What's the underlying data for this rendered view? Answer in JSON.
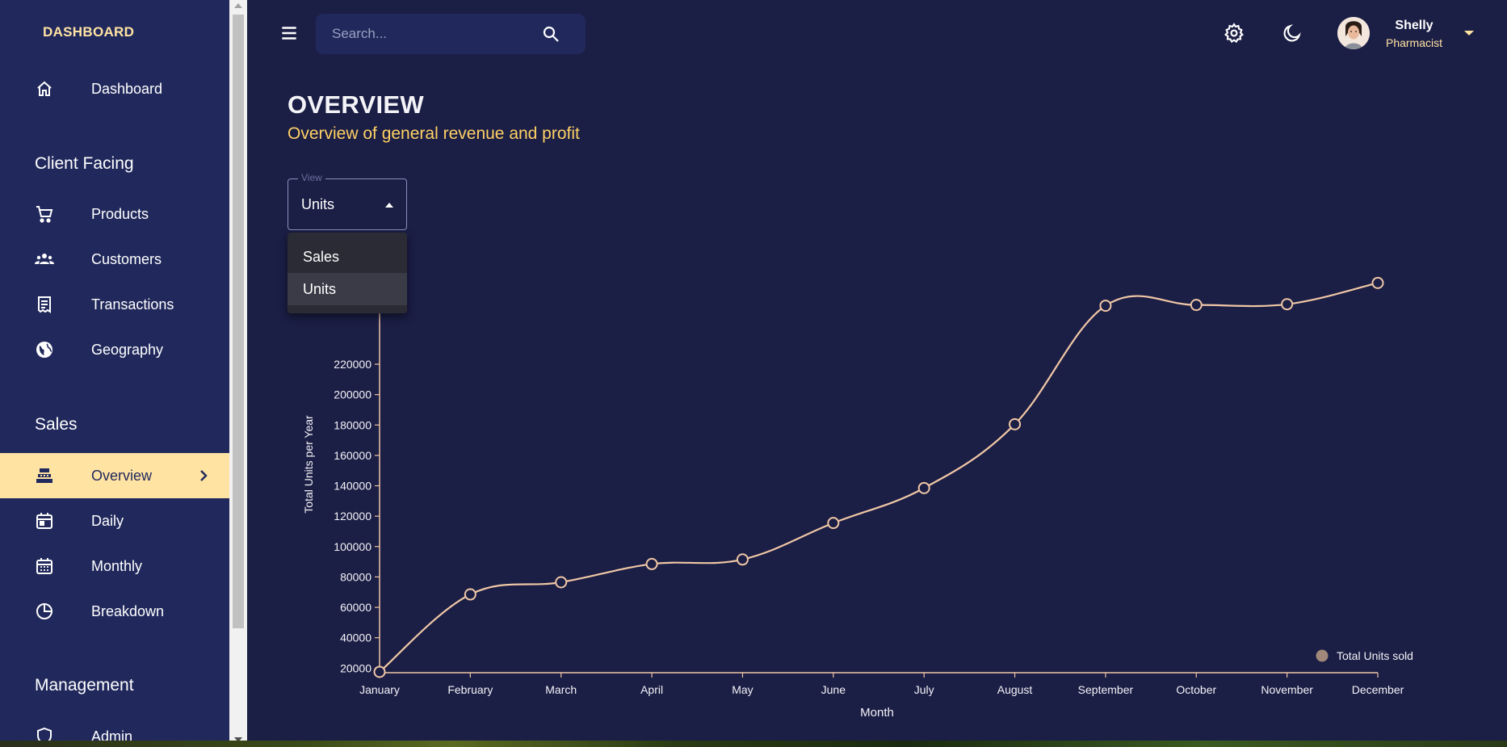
{
  "brand": "DASHBOARD",
  "sidebar": {
    "items": [
      {
        "label": "Dashboard",
        "icon": "home-icon"
      },
      {
        "label": "Products",
        "icon": "cart-icon"
      },
      {
        "label": "Customers",
        "icon": "groups-icon"
      },
      {
        "label": "Transactions",
        "icon": "receipt-icon"
      },
      {
        "label": "Geography",
        "icon": "globe-icon"
      },
      {
        "label": "Overview",
        "icon": "point-of-sale-icon",
        "active": true
      },
      {
        "label": "Daily",
        "icon": "calendar-day-icon"
      },
      {
        "label": "Monthly",
        "icon": "calendar-month-icon"
      },
      {
        "label": "Breakdown",
        "icon": "pie-chart-icon"
      },
      {
        "label": "Admin",
        "icon": "admin-shield-icon"
      }
    ],
    "sections": [
      "Client Facing",
      "Sales",
      "Management"
    ]
  },
  "search": {
    "placeholder": "Search..."
  },
  "user": {
    "name": "Shelly",
    "role": "Pharmacist"
  },
  "header": {
    "title": "OVERVIEW",
    "subtitle": "Overview of general revenue and profit"
  },
  "view_select": {
    "legend": "View",
    "value": "Units",
    "options": [
      "Sales",
      "Units"
    ]
  },
  "colors": {
    "line": "#f0c7a6",
    "accent": "#ffe3a3",
    "legend_dot": "#a0897a"
  },
  "chart_data": {
    "type": "line",
    "xlabel": "Month",
    "ylabel": "Total Units per Year",
    "categories": [
      "January",
      "February",
      "March",
      "April",
      "May",
      "June",
      "July",
      "August",
      "September",
      "October",
      "November",
      "December"
    ],
    "series": [
      {
        "name": "Total Units sold",
        "values": [
          17500,
          68500,
          76500,
          88500,
          91500,
          115500,
          138500,
          180500,
          258500,
          259000,
          259500,
          273500
        ]
      }
    ],
    "yticks": [
      20000,
      40000,
      60000,
      80000,
      100000,
      120000,
      140000,
      160000,
      180000,
      200000,
      220000
    ],
    "ylim": [
      17500,
      279000
    ],
    "legend": "bottom-right",
    "grid": false
  }
}
